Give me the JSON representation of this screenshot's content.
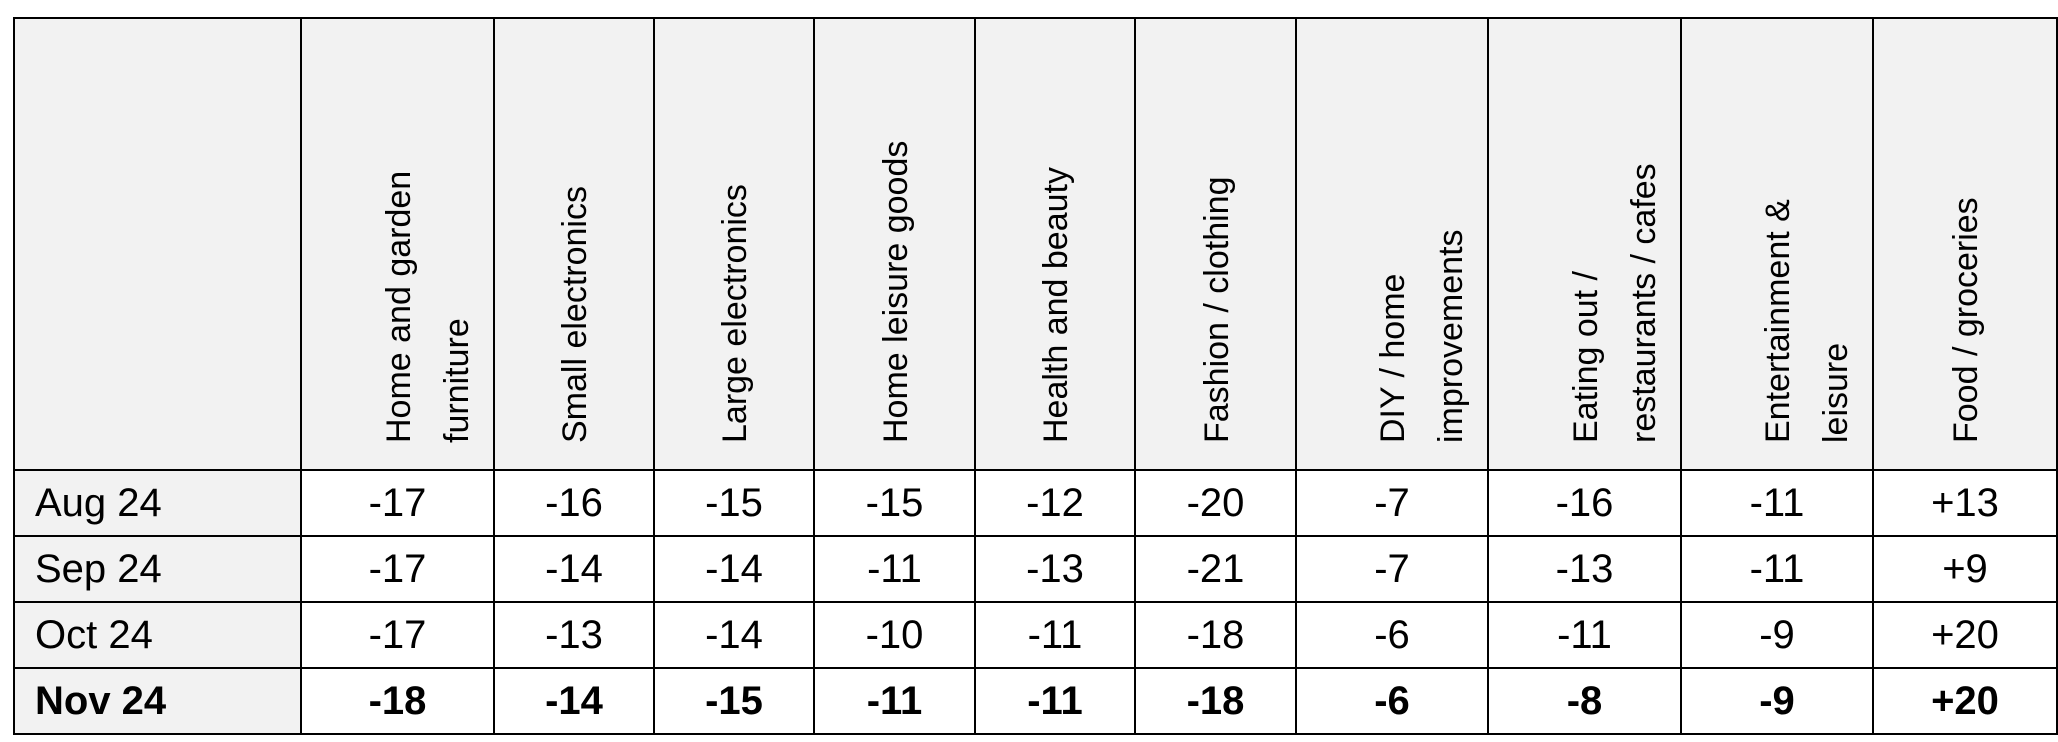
{
  "chart_data": {
    "type": "table",
    "columns": [
      "Home and garden furniture",
      "Small electronics",
      "Large electronics",
      "Home leisure goods",
      "Health and beauty",
      "Fashion / clothing",
      "DIY / home improvements",
      "Eating out / restaurants / cafes",
      "Entertainment & leisure",
      "Food / groceries"
    ],
    "rows": [
      {
        "label": "Aug 24",
        "bold": false,
        "values": [
          "-17",
          "-16",
          "-15",
          "-15",
          "-12",
          "-20",
          "-7",
          "-16",
          "-11",
          "+13"
        ]
      },
      {
        "label": "Sep 24",
        "bold": false,
        "values": [
          "-17",
          "-14",
          "-14",
          "-11",
          "-13",
          "-21",
          "-7",
          "-13",
          "-11",
          "+9"
        ]
      },
      {
        "label": "Oct 24",
        "bold": false,
        "values": [
          "-17",
          "-13",
          "-14",
          "-10",
          "-11",
          "-18",
          "-6",
          "-11",
          "-9",
          "+20"
        ]
      },
      {
        "label": "Nov 24",
        "bold": true,
        "values": [
          "-18",
          "-14",
          "-15",
          "-11",
          "-11",
          "-18",
          "-6",
          "-8",
          "-9",
          "+20"
        ]
      }
    ],
    "header_fill": "#f2f2f2",
    "border_color": "#000000"
  }
}
